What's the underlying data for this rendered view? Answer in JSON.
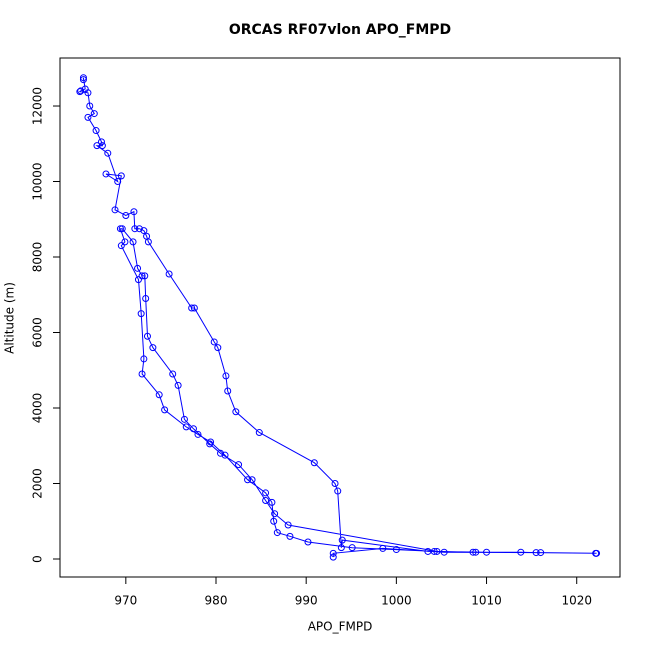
{
  "chart_data": {
    "type": "line",
    "title": "ORCAS RF07vlon APO_FMPD",
    "x_label": "APO_FMPD",
    "y_label": "Altitude (m)",
    "color": "#0000ff",
    "markers": true,
    "xlim": [
      962.7,
      1024.8
    ],
    "ylim": [
      -477,
      13272
    ],
    "xticks": [
      970,
      980,
      990,
      1000,
      1010,
      1020
    ],
    "yticks": [
      0,
      2000,
      4000,
      6000,
      8000,
      10000,
      12000
    ],
    "x": [
      965.3,
      965.3,
      965.5,
      965.0,
      964.9,
      965.8,
      966.0,
      966.5,
      965.8,
      966.7,
      967.3,
      967.4,
      966.8,
      968.0,
      969.1,
      967.8,
      969.5,
      968.8,
      970.0,
      970.9,
      971.0,
      971.5,
      972.0,
      972.3,
      972.5,
      974.8,
      977.3,
      977.6,
      979.8,
      980.2,
      981.1,
      981.3,
      982.2,
      984.8,
      990.9,
      993.2,
      993.5,
      993.9,
      994.0,
      1003.5,
      1010.0,
      1022.2,
      1022.1,
      1016.0,
      1008.5,
      1004.5,
      988.0,
      986.5,
      985.5,
      984.0,
      982.5,
      980.5,
      979.3,
      977.5,
      976.5,
      975.8,
      975.2,
      973.0,
      972.4,
      972.2,
      972.1,
      971.8,
      971.3,
      970.8,
      969.6,
      969.4,
      969.9,
      969.5,
      971.4,
      971.7,
      972.0,
      971.8,
      973.7,
      974.3,
      976.7,
      978.0,
      979.4,
      981.0,
      983.5,
      985.5,
      986.2,
      986.4,
      986.8,
      988.2,
      990.2,
      995.1,
      1000.0,
      1004.2,
      1008.8,
      1013.8,
      1015.5,
      1005.3,
      998.5,
      993.0,
      993.0
    ],
    "values": [
      12700,
      12750,
      12450,
      12400,
      12380,
      12350,
      12000,
      11800,
      11700,
      11350,
      11050,
      10950,
      10950,
      10750,
      10000,
      10200,
      10150,
      9250,
      9100,
      9200,
      8750,
      8750,
      8700,
      8550,
      8400,
      7550,
      6650,
      6650,
      5750,
      5600,
      4850,
      4450,
      3900,
      3350,
      2550,
      2000,
      1800,
      300,
      500,
      200,
      180,
      150,
      150,
      170,
      180,
      200,
      900,
      1200,
      1550,
      2100,
      2500,
      2800,
      3050,
      3450,
      3700,
      4600,
      4900,
      5600,
      5900,
      6900,
      7500,
      7500,
      7700,
      8400,
      8750,
      8750,
      8400,
      8300,
      7400,
      6500,
      5300,
      4900,
      4350,
      3950,
      3500,
      3300,
      3100,
      2750,
      2100,
      1750,
      1500,
      1000,
      700,
      600,
      450,
      300,
      250,
      200,
      180,
      180,
      170,
      180,
      280,
      150,
      50
    ]
  }
}
